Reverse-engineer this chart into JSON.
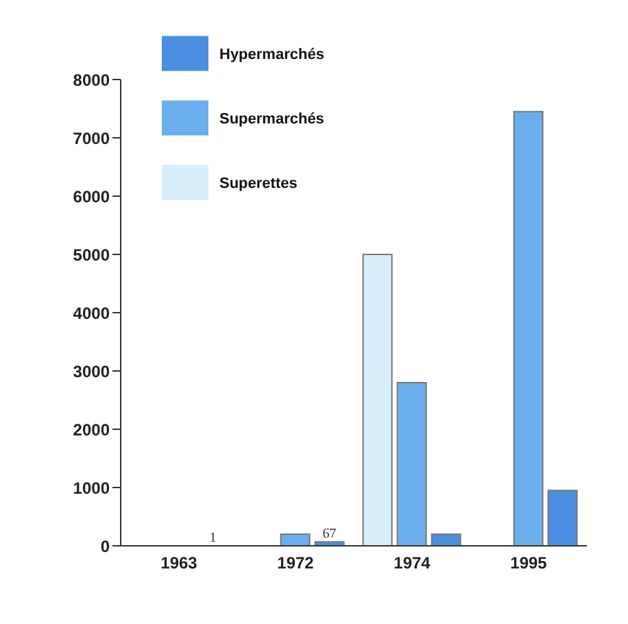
{
  "chart_data": {
    "type": "bar",
    "categories": [
      "1963",
      "1972",
      "1974",
      "1995"
    ],
    "series": [
      {
        "name": "Superettes",
        "color": "#d6eefa",
        "values": [
          null,
          null,
          5000,
          null
        ]
      },
      {
        "name": "Supermarchés",
        "color": "#6aaeee",
        "values": [
          null,
          200,
          2800,
          7450
        ]
      },
      {
        "name": "Hypermarchés",
        "color": "#4a8fe0",
        "values": [
          1,
          67,
          200,
          950
        ],
        "value_labels": [
          "1",
          "67",
          null,
          null
        ]
      }
    ],
    "ylim": [
      0,
      8000
    ],
    "yticks": [
      0,
      1000,
      2000,
      3000,
      4000,
      5000,
      6000,
      7000,
      8000
    ],
    "grid": false,
    "legend": "top left"
  }
}
